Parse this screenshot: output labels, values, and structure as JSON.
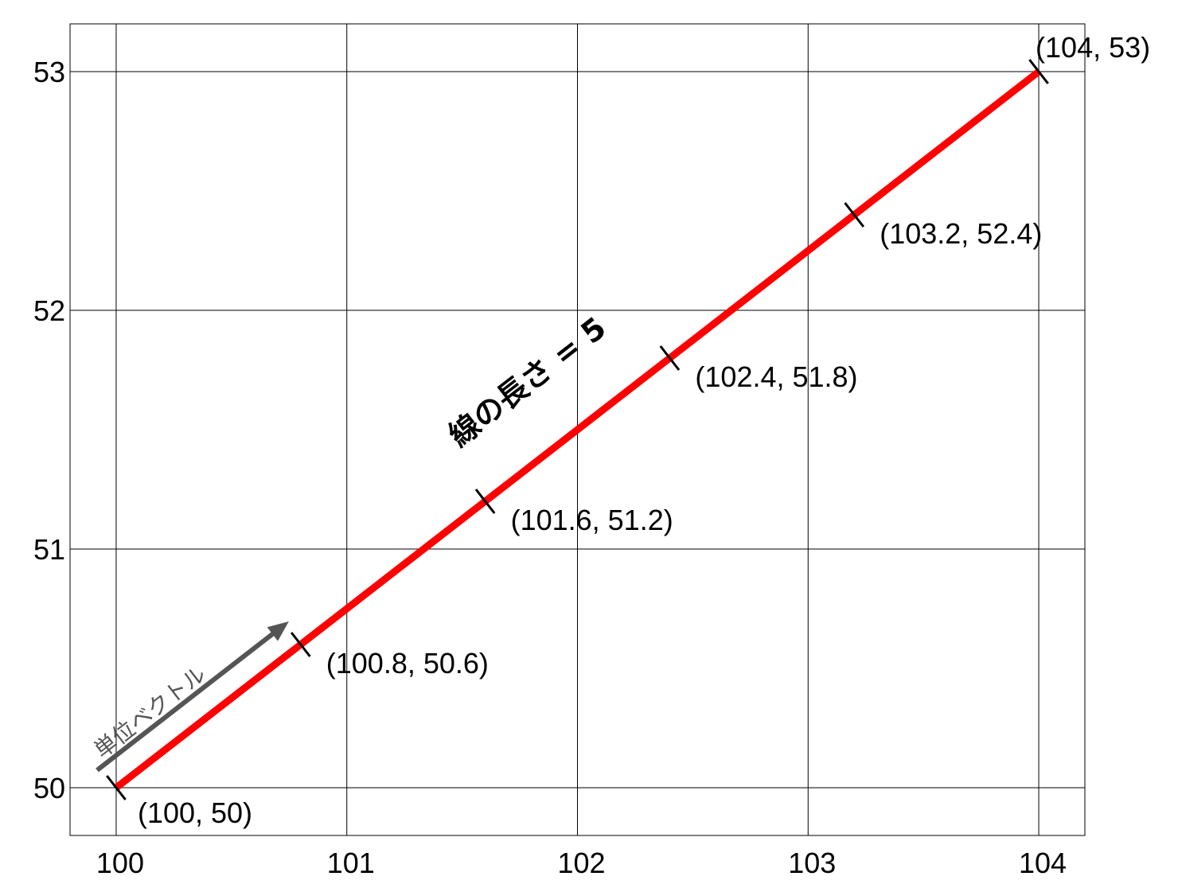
{
  "chart_data": {
    "type": "line",
    "title": "",
    "xlabel": "",
    "ylabel": "",
    "xlim": [
      99.8,
      104.2
    ],
    "ylim": [
      49.8,
      53.2
    ],
    "grid": true,
    "x_ticks": [
      100,
      101,
      102,
      103,
      104
    ],
    "y_ticks": [
      50,
      51,
      52,
      53
    ],
    "x_tick_labels": [
      "100",
      "101",
      "102",
      "103",
      "104"
    ],
    "y_tick_labels": [
      "50",
      "51",
      "52",
      "53"
    ],
    "series": [
      {
        "color": "#ff0000",
        "x": [
          100,
          104
        ],
        "y": [
          50,
          53
        ]
      }
    ],
    "points": [
      {
        "x": 100,
        "y": 50,
        "label": "(100, 50)"
      },
      {
        "x": 100.8,
        "y": 50.6,
        "label": "(100.8, 50.6)"
      },
      {
        "x": 101.6,
        "y": 51.2,
        "label": "(101.6, 51.2)"
      },
      {
        "x": 102.4,
        "y": 51.8,
        "label": "(102.4, 51.8)"
      },
      {
        "x": 103.2,
        "y": 52.4,
        "label": "(103.2, 52.4)"
      },
      {
        "x": 104,
        "y": 53,
        "label": "(104, 53)"
      }
    ],
    "annotations": {
      "line_length": "線の長さ = 5",
      "unit_vector": "単位ベクトル",
      "unit_vector_color": "#555555"
    }
  }
}
